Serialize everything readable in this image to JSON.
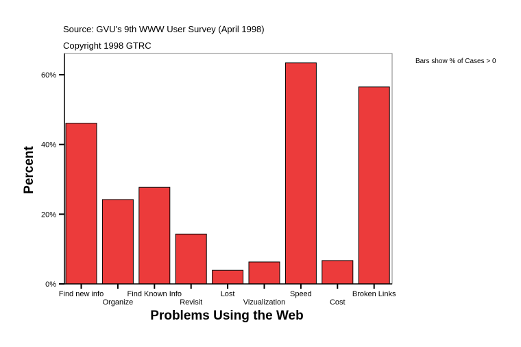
{
  "chart_data": {
    "type": "bar",
    "source_line": "Source: GVU's 9th WWW User Survey (April 1998)",
    "copyright_line": "Copyright 1998 GTRC",
    "note": "Bars show % of Cases > 0",
    "xlabel": "Problems Using the Web",
    "ylabel": "Percent",
    "categories": [
      "Find new info",
      "Organize",
      "Find Known Info",
      "Revisit",
      "Lost",
      "Vizualization",
      "Speed",
      "Cost",
      "Broken Links"
    ],
    "values": [
      46.1,
      24.2,
      27.7,
      14.3,
      3.9,
      6.3,
      63.4,
      6.7,
      56.5
    ],
    "yticks": [
      0,
      20,
      40,
      60
    ],
    "ytick_labels": [
      "0%",
      "20%",
      "40%",
      "60%"
    ],
    "ylim": [
      0,
      66
    ],
    "grid": false,
    "bar_color": "#ec3b3b"
  }
}
